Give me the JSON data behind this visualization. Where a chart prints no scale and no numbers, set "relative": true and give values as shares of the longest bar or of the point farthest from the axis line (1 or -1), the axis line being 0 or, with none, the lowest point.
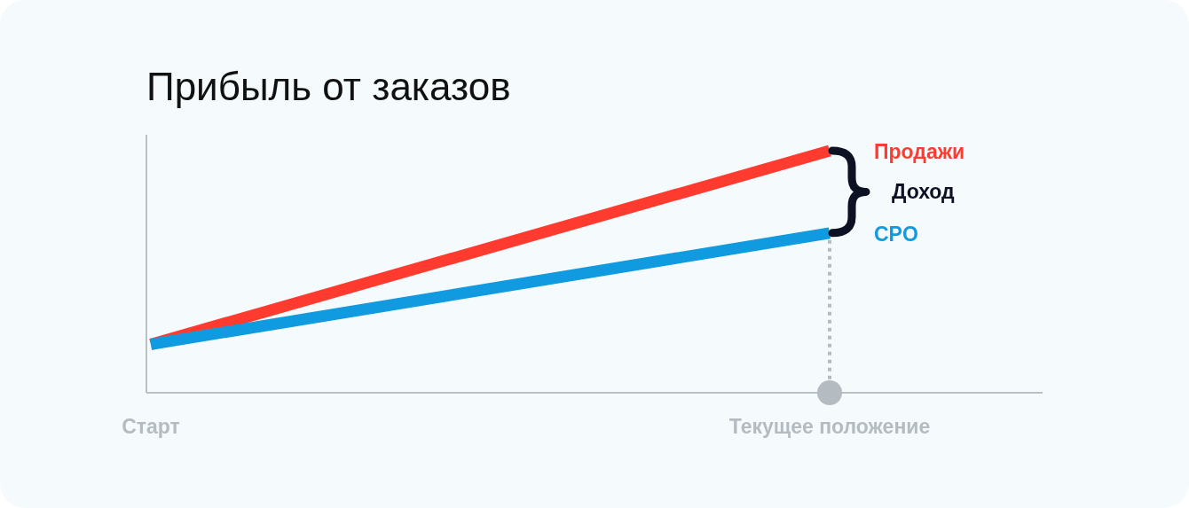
{
  "chart_data": {
    "type": "line",
    "title": "Прибыль от заказов",
    "relative": true,
    "tick_labels": "x",
    "categories": [
      "Старт",
      "Текущее положение"
    ],
    "series": [
      {
        "name": "Продажи",
        "color": "#ff3b30",
        "values": [
          0.2,
          1
        ]
      },
      {
        "name": "CPO",
        "color": "#109ae0",
        "values": [
          0.2,
          0.66
        ]
      }
    ],
    "annotations": [
      "Доход"
    ],
    "ref_lines": [
      {
        "axis": "x",
        "value": "Текущее положение",
        "color": "#b4bbc1",
        "line_style": "dotted"
      }
    ],
    "marker": "none",
    "line_style": "solid"
  }
}
